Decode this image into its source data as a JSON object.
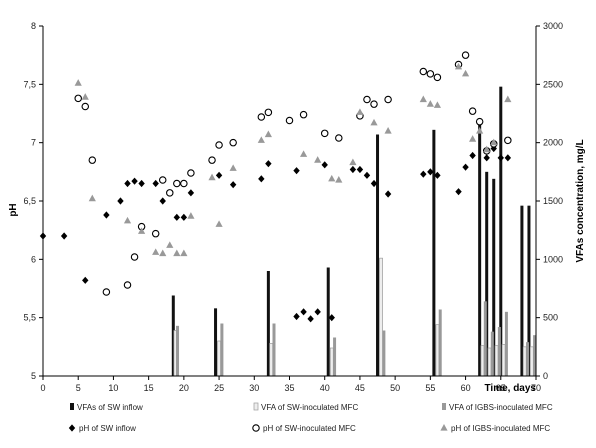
{
  "chart_data": {
    "type": "combo",
    "title": "",
    "xlabel": "Time, days",
    "ylabel_left": "pH",
    "ylabel_right": "VFAs concentration, mg/L",
    "xlim": [
      0,
      70
    ],
    "xticks": [
      0,
      5,
      10,
      15,
      20,
      25,
      30,
      35,
      40,
      45,
      50,
      55,
      60,
      65,
      70
    ],
    "ylim_left": [
      5,
      8
    ],
    "yticks_left": [
      "5",
      "5,5",
      "6",
      "6,5",
      "7",
      "7,5",
      "8"
    ],
    "ylim_right": [
      0,
      3000
    ],
    "yticks_right": [
      "0",
      "500",
      "1000",
      "1500",
      "2000",
      "2500",
      "3000"
    ],
    "grid": false,
    "legend_position": "bottom",
    "bar_series": [
      {
        "name": "VFAs of SW inflow",
        "axis": "right",
        "color": "#111111",
        "points": [
          {
            "x": 18.5,
            "y": 690
          },
          {
            "x": 24.5,
            "y": 580
          },
          {
            "x": 32.0,
            "y": 900
          },
          {
            "x": 40.5,
            "y": 930
          },
          {
            "x": 47.5,
            "y": 2070
          },
          {
            "x": 55.5,
            "y": 2110
          },
          {
            "x": 62.0,
            "y": 2180
          },
          {
            "x": 63.0,
            "y": 1750
          },
          {
            "x": 64.0,
            "y": 1690
          },
          {
            "x": 65.0,
            "y": 2480
          },
          {
            "x": 68.0,
            "y": 1460
          },
          {
            "x": 69.0,
            "y": 1460
          }
        ]
      },
      {
        "name": "VFA of SW-inoculated MFC",
        "axis": "right",
        "color": "#eeeeee",
        "points": [
          {
            "x": 18.8,
            "y": 390
          },
          {
            "x": 25.0,
            "y": 300
          },
          {
            "x": 32.4,
            "y": 280
          },
          {
            "x": 41.0,
            "y": 240
          },
          {
            "x": 48.0,
            "y": 1010
          },
          {
            "x": 56.0,
            "y": 440
          },
          {
            "x": 62.4,
            "y": 260
          },
          {
            "x": 63.4,
            "y": 240
          },
          {
            "x": 64.4,
            "y": 260
          },
          {
            "x": 65.4,
            "y": 270
          },
          {
            "x": 68.4,
            "y": 250
          },
          {
            "x": 69.4,
            "y": 250
          }
        ]
      },
      {
        "name": "VFA of IGBS-inoculated MFC",
        "axis": "right",
        "color": "#999999",
        "points": [
          {
            "x": 19.1,
            "y": 430
          },
          {
            "x": 25.4,
            "y": 450
          },
          {
            "x": 32.8,
            "y": 450
          },
          {
            "x": 41.4,
            "y": 330
          },
          {
            "x": 48.4,
            "y": 390
          },
          {
            "x": 56.4,
            "y": 570
          },
          {
            "x": 62.8,
            "y": 640
          },
          {
            "x": 63.8,
            "y": 380
          },
          {
            "x": 64.8,
            "y": 420
          },
          {
            "x": 65.8,
            "y": 550
          },
          {
            "x": 68.8,
            "y": 290
          },
          {
            "x": 69.8,
            "y": 350
          }
        ]
      }
    ],
    "scatter_series": [
      {
        "name": "pH of SW inflow",
        "axis": "left",
        "marker": "diamond",
        "color": "#000000",
        "points": [
          {
            "x": 0,
            "y": 6.2
          },
          {
            "x": 3,
            "y": 6.2
          },
          {
            "x": 6,
            "y": 5.82
          },
          {
            "x": 9,
            "y": 6.38
          },
          {
            "x": 11,
            "y": 6.5
          },
          {
            "x": 12,
            "y": 6.65
          },
          {
            "x": 13,
            "y": 6.67
          },
          {
            "x": 14,
            "y": 6.65
          },
          {
            "x": 16,
            "y": 6.65
          },
          {
            "x": 17,
            "y": 6.5
          },
          {
            "x": 18,
            "y": 6.57
          },
          {
            "x": 19,
            "y": 6.36
          },
          {
            "x": 20,
            "y": 6.36
          },
          {
            "x": 21,
            "y": 6.57
          },
          {
            "x": 25,
            "y": 6.72
          },
          {
            "x": 27,
            "y": 6.64
          },
          {
            "x": 31,
            "y": 6.69
          },
          {
            "x": 32,
            "y": 6.82
          },
          {
            "x": 36,
            "y": 6.76
          },
          {
            "x": 36,
            "y": 5.51
          },
          {
            "x": 37,
            "y": 5.55
          },
          {
            "x": 38,
            "y": 5.49
          },
          {
            "x": 39,
            "y": 5.55
          },
          {
            "x": 40,
            "y": 6.81
          },
          {
            "x": 41,
            "y": 5.5
          },
          {
            "x": 44,
            "y": 6.77
          },
          {
            "x": 45,
            "y": 6.77
          },
          {
            "x": 46,
            "y": 6.72
          },
          {
            "x": 47,
            "y": 6.65
          },
          {
            "x": 49,
            "y": 6.56
          },
          {
            "x": 54,
            "y": 6.73
          },
          {
            "x": 55,
            "y": 6.75
          },
          {
            "x": 56,
            "y": 6.72
          },
          {
            "x": 59,
            "y": 6.58
          },
          {
            "x": 60,
            "y": 6.79
          },
          {
            "x": 61,
            "y": 6.89
          },
          {
            "x": 62,
            "y": 7.17
          },
          {
            "x": 63,
            "y": 6.87
          },
          {
            "x": 64,
            "y": 6.95
          },
          {
            "x": 65,
            "y": 6.87
          },
          {
            "x": 66,
            "y": 6.87
          }
        ]
      },
      {
        "name": "pH of SW-inoculated MFC",
        "axis": "left",
        "marker": "circle",
        "color": "#000000",
        "points": [
          {
            "x": 5,
            "y": 7.38
          },
          {
            "x": 6,
            "y": 7.31
          },
          {
            "x": 7,
            "y": 6.85
          },
          {
            "x": 9,
            "y": 5.72
          },
          {
            "x": 12,
            "y": 5.78
          },
          {
            "x": 13,
            "y": 6.02
          },
          {
            "x": 14,
            "y": 6.28
          },
          {
            "x": 16,
            "y": 6.22
          },
          {
            "x": 17,
            "y": 6.68
          },
          {
            "x": 18,
            "y": 6.57
          },
          {
            "x": 19,
            "y": 6.65
          },
          {
            "x": 20,
            "y": 6.65
          },
          {
            "x": 21,
            "y": 6.74
          },
          {
            "x": 24,
            "y": 6.85
          },
          {
            "x": 25,
            "y": 6.98
          },
          {
            "x": 27,
            "y": 7.0
          },
          {
            "x": 31,
            "y": 7.22
          },
          {
            "x": 32,
            "y": 7.26
          },
          {
            "x": 35,
            "y": 7.19
          },
          {
            "x": 37,
            "y": 7.24
          },
          {
            "x": 40,
            "y": 7.08
          },
          {
            "x": 42,
            "y": 7.04
          },
          {
            "x": 45,
            "y": 7.23
          },
          {
            "x": 46,
            "y": 7.37
          },
          {
            "x": 47,
            "y": 7.33
          },
          {
            "x": 49,
            "y": 7.37
          },
          {
            "x": 54,
            "y": 7.61
          },
          {
            "x": 55,
            "y": 7.59
          },
          {
            "x": 56,
            "y": 7.56
          },
          {
            "x": 59,
            "y": 7.67
          },
          {
            "x": 60,
            "y": 7.75
          },
          {
            "x": 61,
            "y": 7.27
          },
          {
            "x": 62,
            "y": 7.18
          },
          {
            "x": 63,
            "y": 6.93
          },
          {
            "x": 64,
            "y": 6.99
          },
          {
            "x": 66,
            "y": 7.02
          }
        ]
      },
      {
        "name": "pH of IGBS-inoculated MFC",
        "axis": "left",
        "marker": "triangle",
        "color": "#999999",
        "points": [
          {
            "x": 5,
            "y": 7.51
          },
          {
            "x": 6,
            "y": 7.39
          },
          {
            "x": 7,
            "y": 6.52
          },
          {
            "x": 12,
            "y": 6.33
          },
          {
            "x": 14,
            "y": 6.24
          },
          {
            "x": 16,
            "y": 6.06
          },
          {
            "x": 17,
            "y": 6.05
          },
          {
            "x": 18,
            "y": 6.12
          },
          {
            "x": 19,
            "y": 6.05
          },
          {
            "x": 20,
            "y": 6.05
          },
          {
            "x": 21,
            "y": 6.37
          },
          {
            "x": 24,
            "y": 6.7
          },
          {
            "x": 25,
            "y": 6.3
          },
          {
            "x": 27,
            "y": 6.78
          },
          {
            "x": 31,
            "y": 7.02
          },
          {
            "x": 32,
            "y": 7.07
          },
          {
            "x": 37,
            "y": 6.9
          },
          {
            "x": 39,
            "y": 6.85
          },
          {
            "x": 41,
            "y": 6.69
          },
          {
            "x": 42,
            "y": 6.68
          },
          {
            "x": 44,
            "y": 6.83
          },
          {
            "x": 45,
            "y": 7.26
          },
          {
            "x": 47,
            "y": 7.17
          },
          {
            "x": 49,
            "y": 7.1
          },
          {
            "x": 54,
            "y": 7.37
          },
          {
            "x": 55,
            "y": 7.33
          },
          {
            "x": 56,
            "y": 7.32
          },
          {
            "x": 59,
            "y": 7.65
          },
          {
            "x": 60,
            "y": 7.59
          },
          {
            "x": 61,
            "y": 7.03
          },
          {
            "x": 62,
            "y": 7.1
          },
          {
            "x": 63,
            "y": 6.94
          },
          {
            "x": 64,
            "y": 7.0
          },
          {
            "x": 66,
            "y": 7.37
          }
        ]
      }
    ]
  }
}
